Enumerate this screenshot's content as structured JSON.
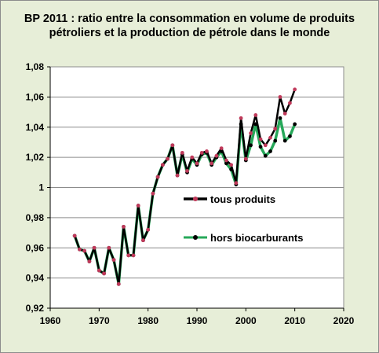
{
  "chart_data": {
    "type": "line",
    "title_lines": [
      "BP 2011 : ratio entre la consommation en volume de produits",
      "pétroliers et la production de pétrole dans le monde"
    ],
    "xlabel": "",
    "ylabel": "",
    "xlim": [
      1960,
      2020
    ],
    "ylim": [
      0.92,
      1.08
    ],
    "x_ticks": [
      1960,
      1970,
      1980,
      1990,
      2000,
      2010,
      2020
    ],
    "x_tick_labels": [
      "1960",
      "1970",
      "1980",
      "1990",
      "2000",
      "2010",
      "2020"
    ],
    "y_ticks": [
      0.92,
      0.94,
      0.96,
      0.98,
      1.0,
      1.02,
      1.04,
      1.06,
      1.08
    ],
    "y_tick_labels": [
      "0,92",
      "0,94",
      "0,96",
      "0,98",
      "1",
      "1,02",
      "1,04",
      "1,06",
      "1,08"
    ],
    "grid": "horizontal",
    "legend_position": "center-right",
    "x": [
      1965,
      1966,
      1967,
      1968,
      1969,
      1970,
      1971,
      1972,
      1973,
      1974,
      1975,
      1976,
      1977,
      1978,
      1979,
      1980,
      1981,
      1982,
      1983,
      1984,
      1985,
      1986,
      1987,
      1988,
      1989,
      1990,
      1991,
      1992,
      1993,
      1994,
      1995,
      1996,
      1997,
      1998,
      1999,
      2000,
      2001,
      2002,
      2003,
      2004,
      2005,
      2006,
      2007,
      2008,
      2009,
      2010
    ],
    "series": [
      {
        "name": "tous produits",
        "line_color": "#000000",
        "marker_color": "#c0395a",
        "values": [
          0.968,
          0.959,
          0.958,
          0.951,
          0.96,
          0.945,
          0.943,
          0.96,
          0.952,
          0.936,
          0.974,
          0.955,
          0.955,
          0.988,
          0.965,
          0.972,
          0.996,
          1.007,
          1.015,
          1.019,
          1.028,
          1.008,
          1.023,
          1.011,
          1.02,
          1.016,
          1.023,
          1.024,
          1.016,
          1.021,
          1.026,
          1.018,
          1.015,
          1.003,
          1.046,
          1.019,
          1.036,
          1.048,
          1.032,
          1.028,
          1.033,
          1.039,
          1.06,
          1.049,
          1.056,
          1.065
        ]
      },
      {
        "name": "hors biocarburants",
        "line_color": "#27a85a",
        "marker_color": "#000000",
        "values": [
          0.968,
          0.959,
          0.958,
          0.951,
          0.96,
          0.945,
          0.943,
          0.96,
          0.952,
          0.936,
          0.974,
          0.955,
          0.955,
          0.988,
          0.965,
          0.972,
          0.996,
          1.007,
          1.015,
          1.019,
          1.028,
          1.008,
          1.022,
          1.01,
          1.019,
          1.015,
          1.022,
          1.023,
          1.015,
          1.02,
          1.024,
          1.016,
          1.012,
          1.002,
          1.042,
          1.018,
          1.028,
          1.042,
          1.027,
          1.021,
          1.024,
          1.031,
          1.046,
          1.031,
          1.034,
          1.042
        ]
      }
    ]
  }
}
